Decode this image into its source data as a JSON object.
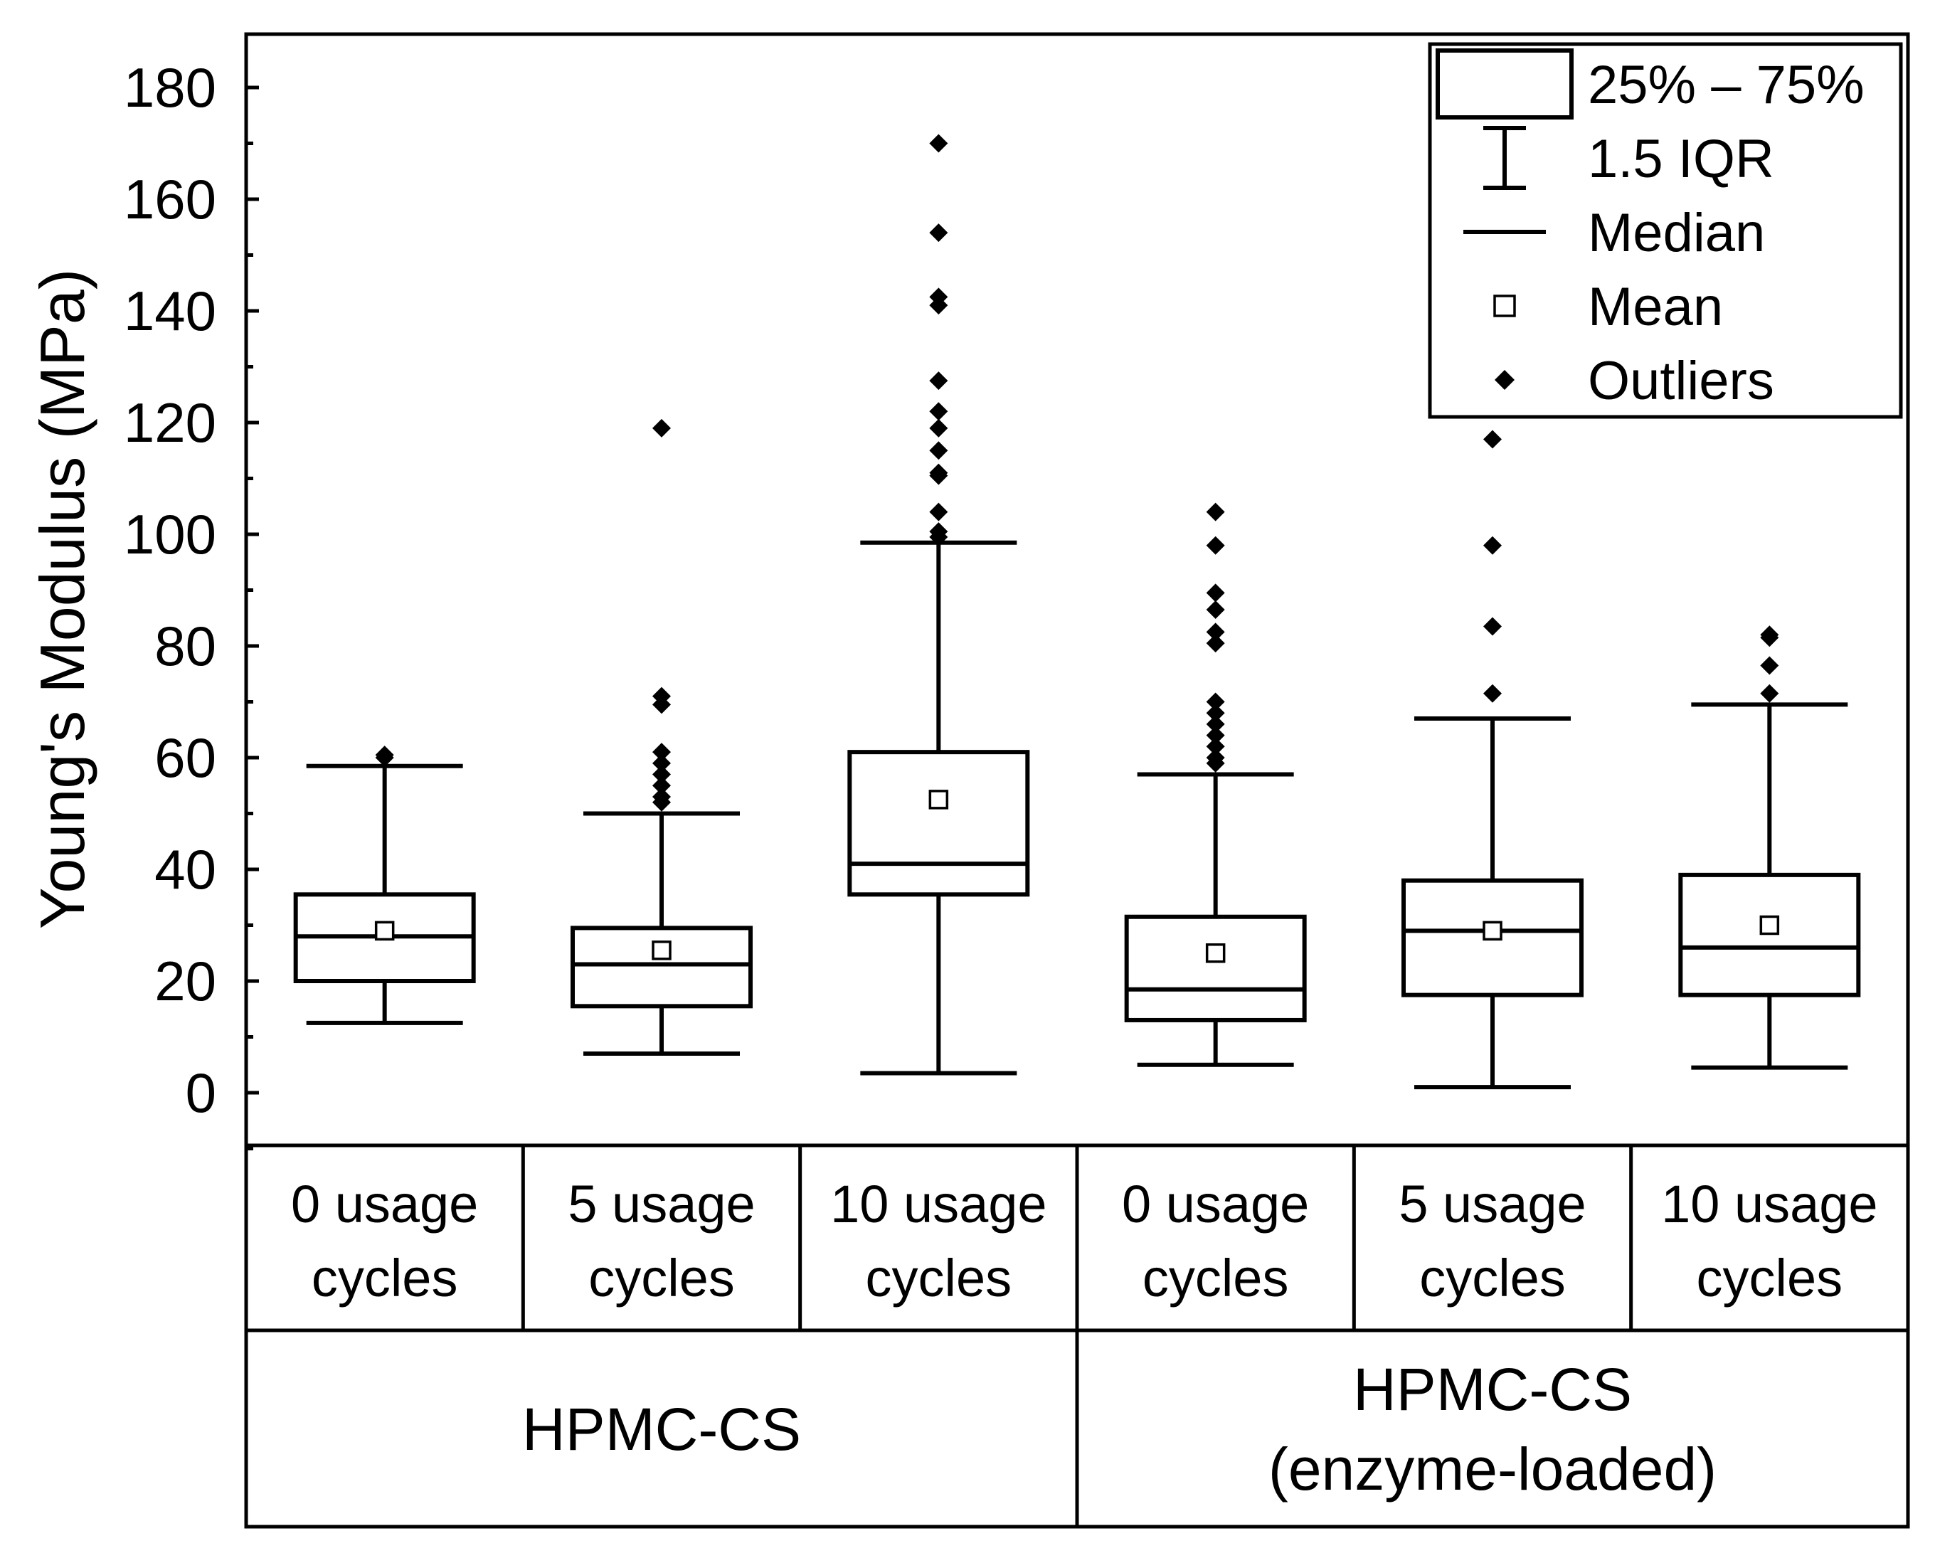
{
  "chart_data": {
    "type": "box",
    "ylabel": "Young's Modulus (MPa)",
    "ylim": [
      -10,
      190
    ],
    "yticks": [
      0,
      20,
      40,
      60,
      80,
      100,
      120,
      140,
      160,
      180
    ],
    "categories": [
      [
        "0 usage",
        "cycles"
      ],
      [
        "5 usage",
        "cycles"
      ],
      [
        "10 usage",
        "cycles"
      ],
      [
        "0 usage",
        "cycles"
      ],
      [
        "5 usage",
        "cycles"
      ],
      [
        "10 usage",
        "cycles"
      ]
    ],
    "groups": [
      {
        "lines": [
          "HPMC-CS"
        ],
        "span": [
          0,
          2
        ]
      },
      {
        "lines": [
          "HPMC-CS",
          "(enzyme-loaded)"
        ],
        "span": [
          3,
          5
        ]
      }
    ],
    "boxes": [
      {
        "whisker_low": 12.5,
        "q1": 20,
        "median": 28,
        "q3": 35.5,
        "whisker_high": 58.5,
        "mean": 29,
        "outliers": [
          60,
          60.5
        ]
      },
      {
        "whisker_low": 7,
        "q1": 15.5,
        "median": 23,
        "q3": 29.5,
        "whisker_high": 50,
        "mean": 25.5,
        "outliers": [
          52,
          53,
          55,
          57,
          59,
          61,
          69.5,
          71,
          119
        ]
      },
      {
        "whisker_low": 3.5,
        "q1": 35.5,
        "median": 41,
        "q3": 61,
        "whisker_high": 98.5,
        "mean": 52.5,
        "outliers": [
          99.5,
          100.5,
          104,
          110.5,
          111,
          115,
          119,
          122,
          127.5,
          141,
          142.5,
          154,
          170
        ]
      },
      {
        "whisker_low": 5,
        "q1": 13,
        "median": 18.5,
        "q3": 31.5,
        "whisker_high": 57,
        "mean": 25,
        "outliers": [
          59,
          60,
          62,
          64,
          66,
          68,
          70,
          80.5,
          82.5,
          86.5,
          89.5,
          98,
          104
        ]
      },
      {
        "whisker_low": 1,
        "q1": 17.5,
        "median": 29,
        "q3": 38,
        "whisker_high": 67,
        "mean": 29,
        "outliers": [
          71.5,
          83.5,
          98,
          117
        ]
      },
      {
        "whisker_low": 4.5,
        "q1": 17.5,
        "median": 26,
        "q3": 39,
        "whisker_high": 69.5,
        "mean": 30,
        "outliers": [
          71.5,
          76.5,
          81.5,
          82
        ]
      }
    ],
    "legend": {
      "position": "top-right",
      "entries": [
        {
          "symbol": "box",
          "label": "25% – 75%"
        },
        {
          "symbol": "whisker",
          "label": "1.5 IQR"
        },
        {
          "symbol": "median",
          "label": "Median"
        },
        {
          "symbol": "mean",
          "label": "Mean"
        },
        {
          "symbol": "outlier",
          "label": "Outliers"
        }
      ]
    }
  }
}
